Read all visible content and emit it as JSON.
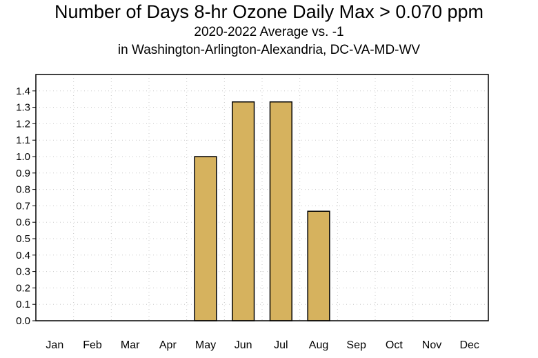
{
  "chart_data": {
    "type": "bar",
    "title": "Number of Days 8-hr Ozone Daily Max > 0.070 ppm",
    "subtitle_lines": [
      "2020-2022 Average vs. -1",
      "in Washington-Arlington-Alexandria, DC-VA-MD-WV"
    ],
    "xlabel": "",
    "ylabel": "",
    "categories": [
      "Jan",
      "Feb",
      "Mar",
      "Apr",
      "May",
      "Jun",
      "Jul",
      "Aug",
      "Sep",
      "Oct",
      "Nov",
      "Dec"
    ],
    "values": [
      0,
      0,
      0,
      0,
      1.0,
      1.333,
      1.333,
      0.667,
      0,
      0,
      0,
      0
    ],
    "ylim": [
      0,
      1.5
    ],
    "yticks": [
      "0.0",
      "0.1",
      "0.2",
      "0.3",
      "0.4",
      "0.5",
      "0.6",
      "0.7",
      "0.8",
      "0.9",
      "1.0",
      "1.1",
      "1.2",
      "1.3",
      "1.4"
    ],
    "grid": true,
    "grid_style": "dotted",
    "legend": "none",
    "bar_color": "#d6b25e",
    "bar_edge_color": "#000000"
  }
}
